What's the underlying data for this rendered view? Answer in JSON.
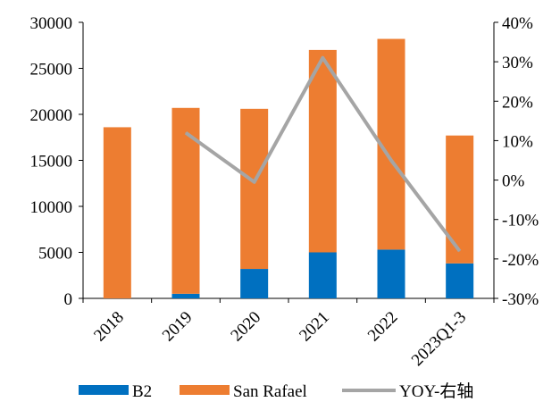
{
  "chart_data": {
    "type": "bar",
    "stacked": true,
    "categories": [
      "2018",
      "2019",
      "2020",
      "2021",
      "2022",
      "2023Q1-3"
    ],
    "series": [
      {
        "name": "B2",
        "type": "bar",
        "axis": "left",
        "color": "#0070C0",
        "values": [
          0,
          500,
          3200,
          5000,
          5300,
          3800
        ]
      },
      {
        "name": "San Rafael",
        "type": "bar",
        "axis": "left",
        "color": "#ED7D31",
        "values": [
          18600,
          20200,
          17400,
          22000,
          22900,
          13900
        ]
      },
      {
        "name": "YOY-右轴",
        "type": "line",
        "axis": "right",
        "color": "#A5A5A5",
        "values": [
          null,
          0.12,
          -0.005,
          0.31,
          0.05,
          -0.18
        ]
      }
    ],
    "y_left": {
      "min": 0,
      "max": 30000,
      "ticks": [
        0,
        5000,
        10000,
        15000,
        20000,
        25000,
        30000
      ],
      "tick_labels": [
        "0",
        "5000",
        "10000",
        "15000",
        "20000",
        "25000",
        "30000"
      ]
    },
    "y_right": {
      "min": -0.3,
      "max": 0.4,
      "ticks": [
        -0.3,
        -0.2,
        -0.1,
        0,
        0.1,
        0.2,
        0.3,
        0.4
      ],
      "tick_labels": [
        "-30%",
        "-20%",
        "-10%",
        "0%",
        "10%",
        "20%",
        "30%",
        "40%"
      ]
    },
    "grid": false,
    "legend": "bottom",
    "title": "",
    "xlabel": "",
    "ylabel": ""
  }
}
